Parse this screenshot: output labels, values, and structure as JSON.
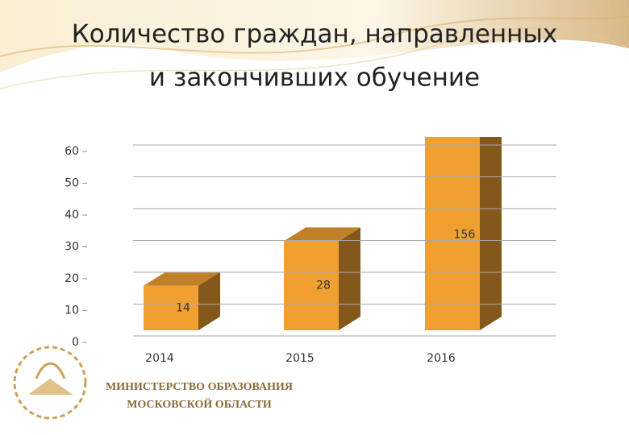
{
  "chart_data": {
    "type": "bar3d",
    "title": "Количество граждан, направленных",
    "subtitle": "и закончивших обучение",
    "categories": [
      "2014",
      "2015",
      "2016"
    ],
    "values": [
      14,
      28,
      156
    ],
    "color": "#f0a030",
    "ylim": [
      0,
      60
    ],
    "yticks": [
      0,
      10,
      20,
      30,
      40,
      50,
      60
    ],
    "grid": true
  },
  "footer": {
    "line1": "МИНИСТЕРСТВО ОБРАЗОВАНИЯ",
    "line2": "МОСКОВСКОЙ ОБЛАСТИ"
  }
}
